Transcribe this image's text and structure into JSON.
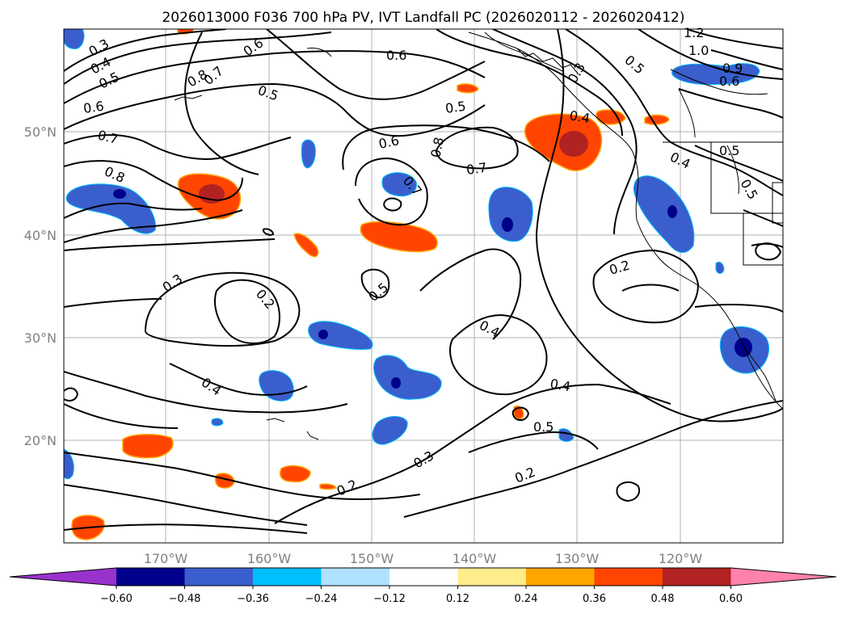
{
  "title": "2026013000 F036 700 hPa PV, IVT Landfall PC (2026020112 - 2026020412)",
  "lon_ticks": [
    "170°W",
    "160°W",
    "150°W",
    "140°W",
    "130°W",
    "120°W"
  ],
  "lat_ticks": [
    "50°N",
    "40°N",
    "30°N",
    "20°N"
  ],
  "colorbar": {
    "colors": [
      "#9932cc",
      "#00008b",
      "#3a5fcd",
      "#00bfff",
      "#b0e2ff",
      "#ffffff",
      "#ffec8b",
      "#ffa500",
      "#ff4500",
      "#b22222",
      "#ff82ab"
    ],
    "tick_labels": [
      "−0.60",
      "−0.48",
      "−0.36",
      "−0.24",
      "−0.12",
      "0.12",
      "0.24",
      "0.36",
      "0.48",
      "0.60"
    ]
  },
  "contour_labels": [
    {
      "id": "cl1",
      "text": "0.3"
    },
    {
      "id": "cl2",
      "text": "0.4"
    },
    {
      "id": "cl3",
      "text": "0.5"
    },
    {
      "id": "cl4",
      "text": "0.6"
    },
    {
      "id": "cl5",
      "text": "0.7"
    },
    {
      "id": "cl6",
      "text": "0.8"
    },
    {
      "id": "cl7",
      "text": "0.8"
    },
    {
      "id": "cl8",
      "text": "0.7"
    },
    {
      "id": "cl9",
      "text": "0.6"
    },
    {
      "id": "cl10",
      "text": "0.5"
    },
    {
      "id": "cl11",
      "text": "0.6"
    },
    {
      "id": "cl12",
      "text": "0.5"
    },
    {
      "id": "cl13",
      "text": "0.6"
    },
    {
      "id": "cl14",
      "text": "0.8"
    },
    {
      "id": "cl15",
      "text": "0.7"
    },
    {
      "id": "cl16",
      "text": "0.7"
    },
    {
      "id": "cl17",
      "text": "0.4"
    },
    {
      "id": "cl18",
      "text": "0.3"
    },
    {
      "id": "cl19",
      "text": "0.5"
    },
    {
      "id": "cl20",
      "text": "1.2"
    },
    {
      "id": "cl21",
      "text": "1.0"
    },
    {
      "id": "cl22",
      "text": "0.9"
    },
    {
      "id": "cl23",
      "text": "0.6"
    },
    {
      "id": "cl24",
      "text": "0.4"
    },
    {
      "id": "cl25",
      "text": "0.5"
    },
    {
      "id": "cl26",
      "text": "0.5"
    },
    {
      "id": "cl27",
      "text": "0.3"
    },
    {
      "id": "cl28",
      "text": "0.2"
    },
    {
      "id": "cl29",
      "text": "0.5"
    },
    {
      "id": "cl30",
      "text": "0.4"
    },
    {
      "id": "cl31",
      "text": "0.4"
    },
    {
      "id": "cl32",
      "text": "0.4"
    },
    {
      "id": "cl33",
      "text": "0.5"
    },
    {
      "id": "cl34",
      "text": "0.3"
    },
    {
      "id": "cl35",
      "text": "0.2"
    },
    {
      "id": "cl36",
      "text": "0.2"
    },
    {
      "id": "cl37",
      "text": "0.2"
    }
  ]
}
